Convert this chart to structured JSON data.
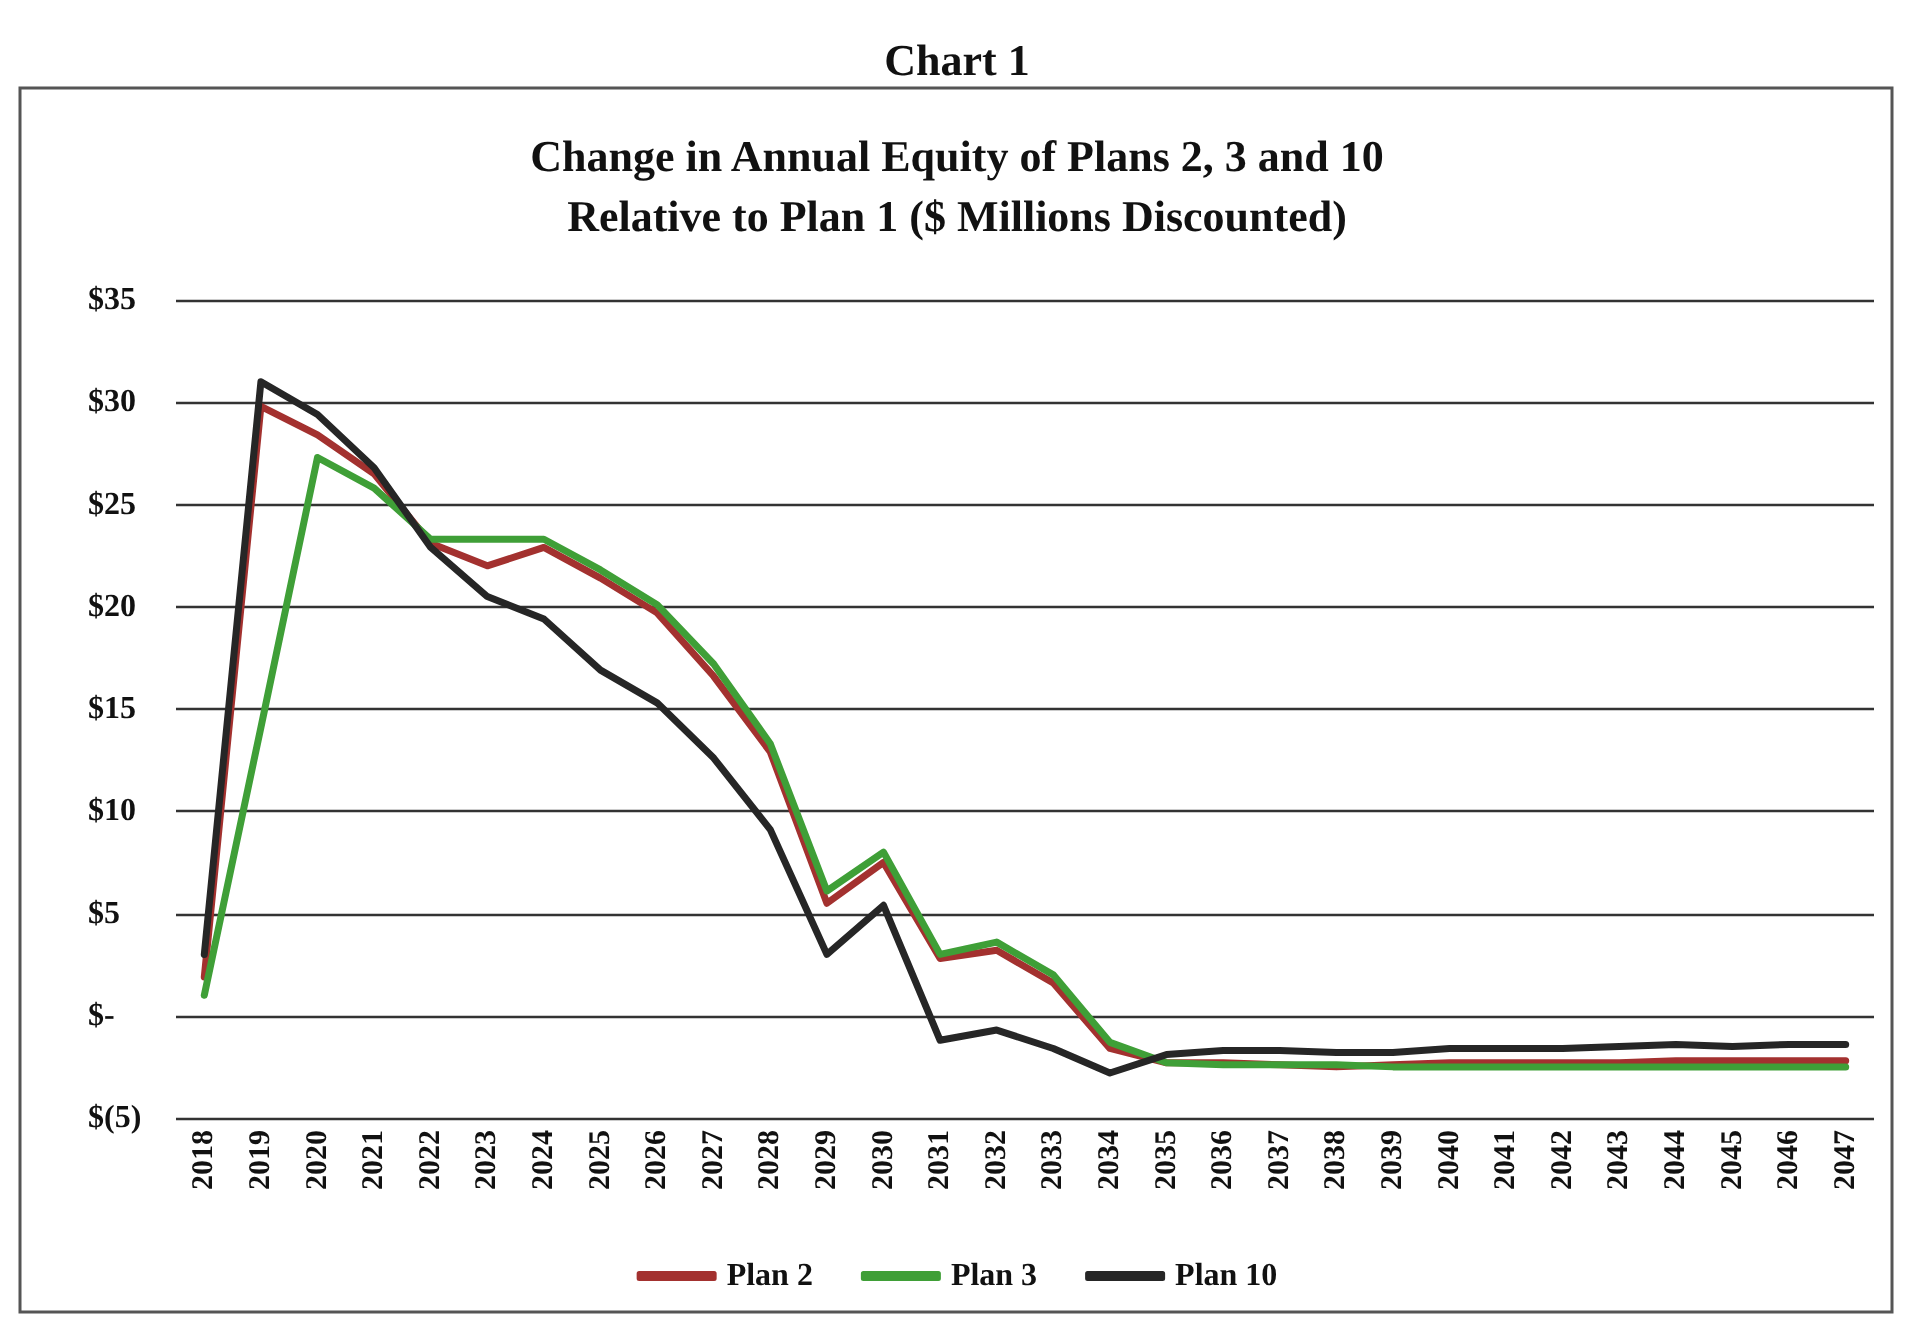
{
  "chart_data": {
    "type": "line",
    "title": "Chart 1",
    "subtitle": "Change in Annual Equity of Plans 2, 3 and 10\nRelative to Plan 1 ($ Millions Discounted)",
    "categories": [
      "2018",
      "2019",
      "2020",
      "2021",
      "2022",
      "2023",
      "2024",
      "2025",
      "2026",
      "2027",
      "2028",
      "2029",
      "2030",
      "2031",
      "2032",
      "2033",
      "2034",
      "2035",
      "2036",
      "2037",
      "2038",
      "2039",
      "2040",
      "2041",
      "2042",
      "2043",
      "2044",
      "2045",
      "2046",
      "2047"
    ],
    "series": [
      {
        "name": "Plan 2",
        "color": "#a3312f",
        "values": [
          1.9,
          29.8,
          28.4,
          26.5,
          23.1,
          22.0,
          22.9,
          21.4,
          19.7,
          16.6,
          12.9,
          5.5,
          7.5,
          2.8,
          3.2,
          1.6,
          -1.6,
          -2.3,
          -2.3,
          -2.4,
          -2.5,
          -2.4,
          -2.3,
          -2.3,
          -2.3,
          -2.3,
          -2.2,
          -2.2,
          -2.2,
          -2.2
        ]
      },
      {
        "name": "Plan 3",
        "color": "#3f9f37",
        "values": [
          1.0,
          14.1,
          27.3,
          25.8,
          23.3,
          23.3,
          23.3,
          21.8,
          20.1,
          17.2,
          13.3,
          6.1,
          8.0,
          3.0,
          3.6,
          2.0,
          -1.3,
          -2.3,
          -2.4,
          -2.4,
          -2.4,
          -2.5,
          -2.5,
          -2.5,
          -2.5,
          -2.5,
          -2.5,
          -2.5,
          -2.5,
          -2.5
        ]
      },
      {
        "name": "Plan 10",
        "color": "#262626",
        "values": [
          3.0,
          31.0,
          29.4,
          26.8,
          22.9,
          20.5,
          19.4,
          16.9,
          15.3,
          12.6,
          9.1,
          3.0,
          5.4,
          -1.2,
          -0.7,
          -1.6,
          -2.8,
          -1.9,
          -1.7,
          -1.7,
          -1.8,
          -1.8,
          -1.6,
          -1.6,
          -1.6,
          -1.5,
          -1.4,
          -1.5,
          -1.4,
          -1.4
        ]
      }
    ],
    "ylim": [
      -5,
      35
    ],
    "yticks": [
      {
        "value": -5,
        "label": "$(5)"
      },
      {
        "value": 0,
        "label": "$-"
      },
      {
        "value": 5,
        "label": "$5"
      },
      {
        "value": 10,
        "label": "$10"
      },
      {
        "value": 15,
        "label": "$15"
      },
      {
        "value": 20,
        "label": "$20"
      },
      {
        "value": 25,
        "label": "$25"
      },
      {
        "value": 30,
        "label": "$30"
      },
      {
        "value": 35,
        "label": "$35"
      }
    ],
    "grid": "y",
    "legend": "bottom",
    "marker": "none",
    "line_style": "solid"
  }
}
